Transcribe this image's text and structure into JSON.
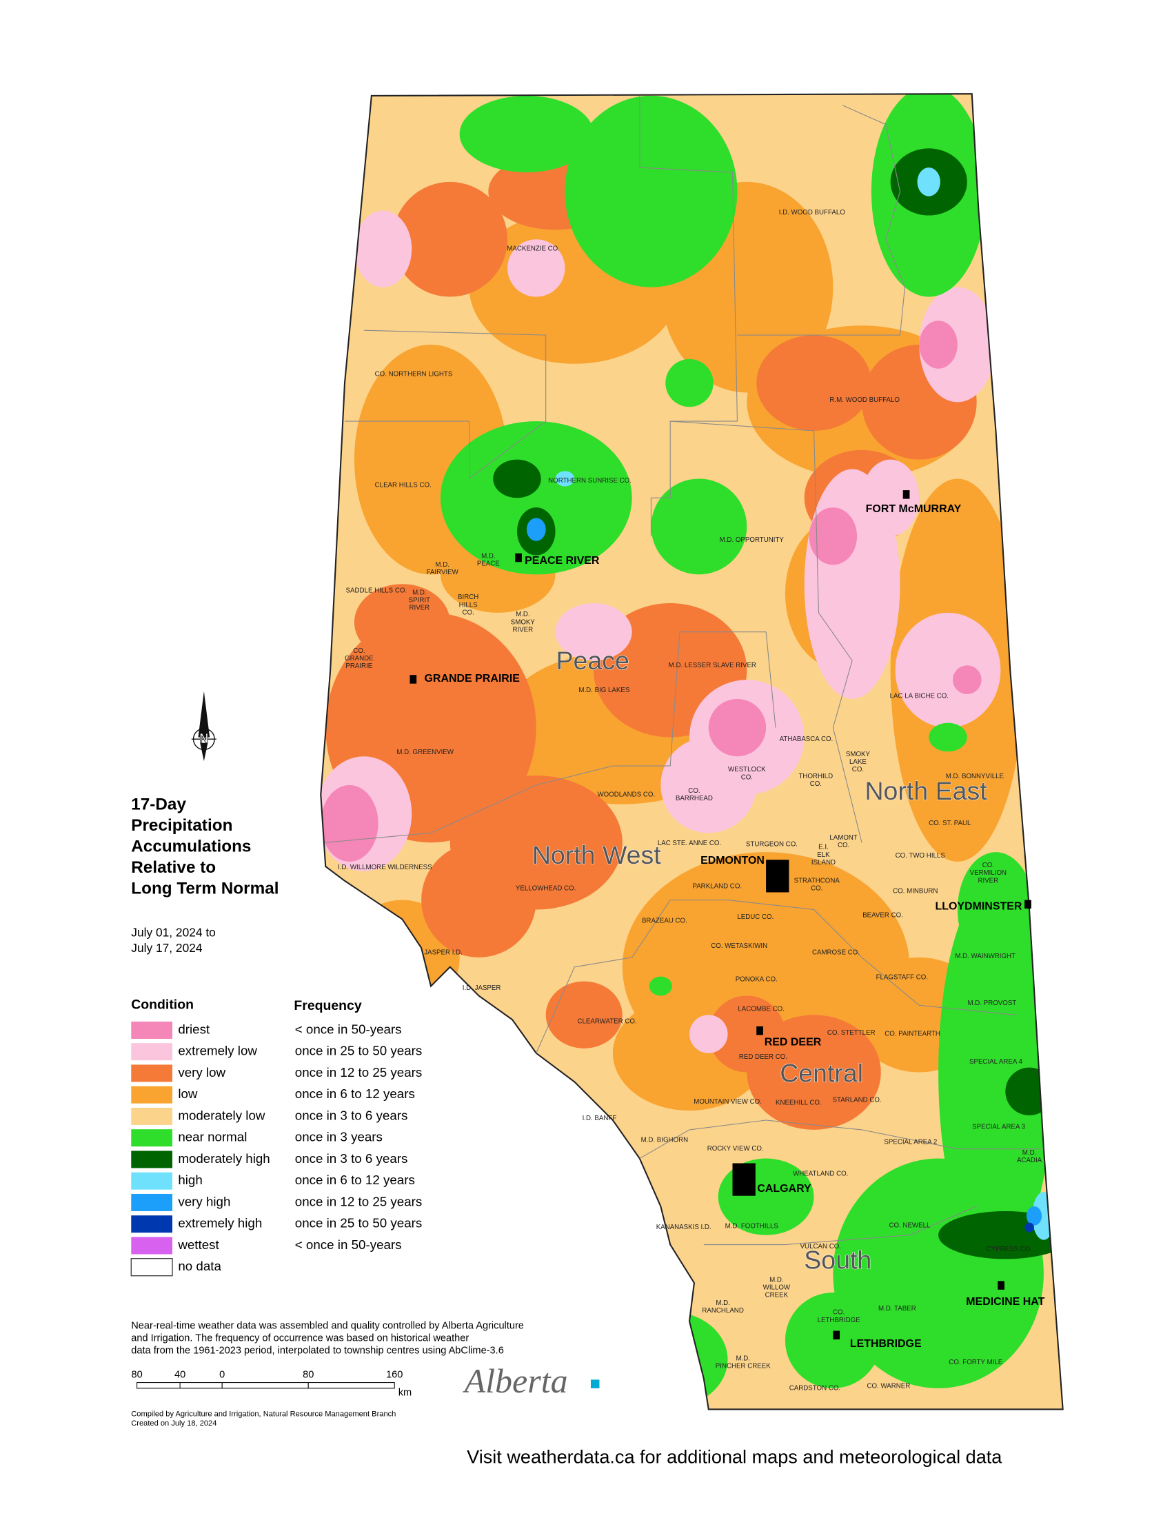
{
  "title": [
    "17-Day",
    "Precipitation",
    "Accumulations",
    "Relative to",
    "Long Term Normal"
  ],
  "period": [
    "July 01, 2024 to",
    "July 17, 2024"
  ],
  "north_label": "N",
  "legend": {
    "condition_header": "Condition",
    "frequency_header": "Frequency",
    "items": [
      {
        "condition": "driest",
        "frequency": "< once in 50-years",
        "color": "#f587b8"
      },
      {
        "condition": "extremely low",
        "frequency": "once in 25 to 50 years",
        "color": "#fcc5de"
      },
      {
        "condition": "very low",
        "frequency": "once in 12 to 25 years",
        "color": "#f57a38"
      },
      {
        "condition": "low",
        "frequency": "once in 6 to 12 years",
        "color": "#f9a431"
      },
      {
        "condition": "moderately low",
        "frequency": "once in 3 to 6 years",
        "color": "#fcd38b"
      },
      {
        "condition": "near normal",
        "frequency": "once in 3 years",
        "color": "#2ede2a"
      },
      {
        "condition": "moderately high",
        "frequency": "once in 3 to 6 years",
        "color": "#006400"
      },
      {
        "condition": "high",
        "frequency": "once in 6 to 12 years",
        "color": "#6fe1fd"
      },
      {
        "condition": "very high",
        "frequency": "once in 12 to 25 years",
        "color": "#1c9ffa"
      },
      {
        "condition": "extremely high",
        "frequency": "once in 25 to 50 years",
        "color": "#0038b0"
      },
      {
        "condition": "wettest",
        "frequency": "< once in 50-years",
        "color": "#d862ef"
      },
      {
        "condition": "no data",
        "frequency": null,
        "color": "#ffffff"
      }
    ]
  },
  "regions": [
    "Peace",
    "North West",
    "North East",
    "Central",
    "South"
  ],
  "cities": [
    "FORT McMURRAY",
    "PEACE RIVER",
    "GRANDE PRAIRIE",
    "EDMONTON",
    "LLOYDMINSTER",
    "RED DEER",
    "CALGARY",
    "MEDICINE HAT",
    "LETHBRIDGE"
  ],
  "municipalities": [
    [
      "I.D. WOOD BUFFALO"
    ],
    [
      "MACKENZIE CO."
    ],
    [
      "CO. NORTHERN LIGHTS"
    ],
    [
      "R.M. WOOD BUFFALO"
    ],
    [
      "CLEAR HILLS CO."
    ],
    [
      "NORTHERN SUNRISE CO."
    ],
    [
      "M.D. OPPORTUNITY"
    ],
    [
      "M.D.",
      "PEACE"
    ],
    [
      "M.D.",
      "FAIRVIEW"
    ],
    [
      "SADDLE HILLS CO."
    ],
    [
      "M.D.",
      "SPIRIT",
      "RIVER"
    ],
    [
      "BIRCH",
      "HILLS",
      "CO."
    ],
    [
      "M.D.",
      "SMOKY",
      "RIVER"
    ],
    [
      "CO.",
      "GRANDE",
      "PRAIRIE"
    ],
    [
      "M.D. LESSER SLAVE RIVER"
    ],
    [
      "M.D. BIG LAKES"
    ],
    [
      "LAC LA BICHE CO."
    ],
    [
      "ATHABASCA CO."
    ],
    [
      "M.D. GREENVIEW"
    ],
    [
      "SMOKY",
      "LAKE",
      "CO."
    ],
    [
      "M.D. BONNYVILLE"
    ],
    [
      "WESTLOCK",
      "CO."
    ],
    [
      "THORHILD",
      "CO."
    ],
    [
      "WOODLANDS CO."
    ],
    [
      "CO.",
      "BARRHEAD"
    ],
    [
      "CO. ST. PAUL"
    ],
    [
      "LAC STE. ANNE CO."
    ],
    [
      "STURGEON CO."
    ],
    [
      "LAMONT",
      "CO."
    ],
    [
      "CO. TWO HILLS"
    ],
    [
      "I.D. WILLMORE WILDERNESS"
    ],
    [
      "E.I.",
      "ELK",
      "ISLAND"
    ],
    [
      "CO.",
      "VERMILION",
      "RIVER"
    ],
    [
      "YELLOWHEAD CO."
    ],
    [
      "PARKLAND CO."
    ],
    [
      "STRATHCONA",
      "CO."
    ],
    [
      "CO. MINBURN"
    ],
    [
      "BEAVER CO."
    ],
    [
      "BRAZEAU CO."
    ],
    [
      "LEDUC CO."
    ],
    [
      "CO. WETASKIWIN"
    ],
    [
      "JASPER I.D."
    ],
    [
      "CAMROSE CO."
    ],
    [
      "M.D. WAINWRIGHT"
    ],
    [
      "FLAGSTAFF CO."
    ],
    [
      "PONOKA CO."
    ],
    [
      "I.D. JASPER"
    ],
    [
      "M.D. PROVOST"
    ],
    [
      "LACOMBE CO."
    ],
    [
      "CLEARWATER CO."
    ],
    [
      "CO. STETTLER"
    ],
    [
      "CO. PAINTEARTH"
    ],
    [
      "RED DEER CO."
    ],
    [
      "SPECIAL AREA 4"
    ],
    [
      "MOUNTAIN VIEW CO."
    ],
    [
      "KNEEHILL CO."
    ],
    [
      "STARLAND CO."
    ],
    [
      "I.D. BANFF"
    ],
    [
      "SPECIAL AREA 3"
    ],
    [
      "M.D. BIGHORN"
    ],
    [
      "SPECIAL AREA 2"
    ],
    [
      "ROCKY VIEW CO."
    ],
    [
      "M.D.",
      "ACADIA"
    ],
    [
      "WHEATLAND CO."
    ],
    [
      "KANANASKIS I.D."
    ],
    [
      "M.D. FOOTHILLS"
    ],
    [
      "CO. NEWELL"
    ],
    [
      "VULCAN CO."
    ],
    [
      "CYPRESS CO."
    ],
    [
      "M.D.",
      "WILLOW",
      "CREEK"
    ],
    [
      "M.D.",
      "RANCHLAND"
    ],
    [
      "CO.",
      "LETHBRIDGE"
    ],
    [
      "M.D. TABER"
    ],
    [
      "CO. FORTY MILE"
    ],
    [
      "M.D.",
      "PINCHER CREEK"
    ],
    [
      "CARDSTON CO."
    ],
    [
      "CO. WARNER"
    ]
  ],
  "footnote": [
    "Near-real-time weather data was assembled and quality controlled by Alberta Agriculture",
    "and Irrigation. The frequency of occurrence was based on historical weather",
    "data from the 1961-2023 period, interpolated to township centres using AbClime-3.6"
  ],
  "scale_labels": [
    "80",
    "40",
    "0",
    "80",
    "160"
  ],
  "scale_unit": "km",
  "credits": [
    "Compiled by Agriculture and Irrigation, Natural Resource Management Branch",
    "Created on July 18, 2024"
  ],
  "logo": "Alberta",
  "footer": "Visit weatherdata.ca for additional maps and meteorological data"
}
